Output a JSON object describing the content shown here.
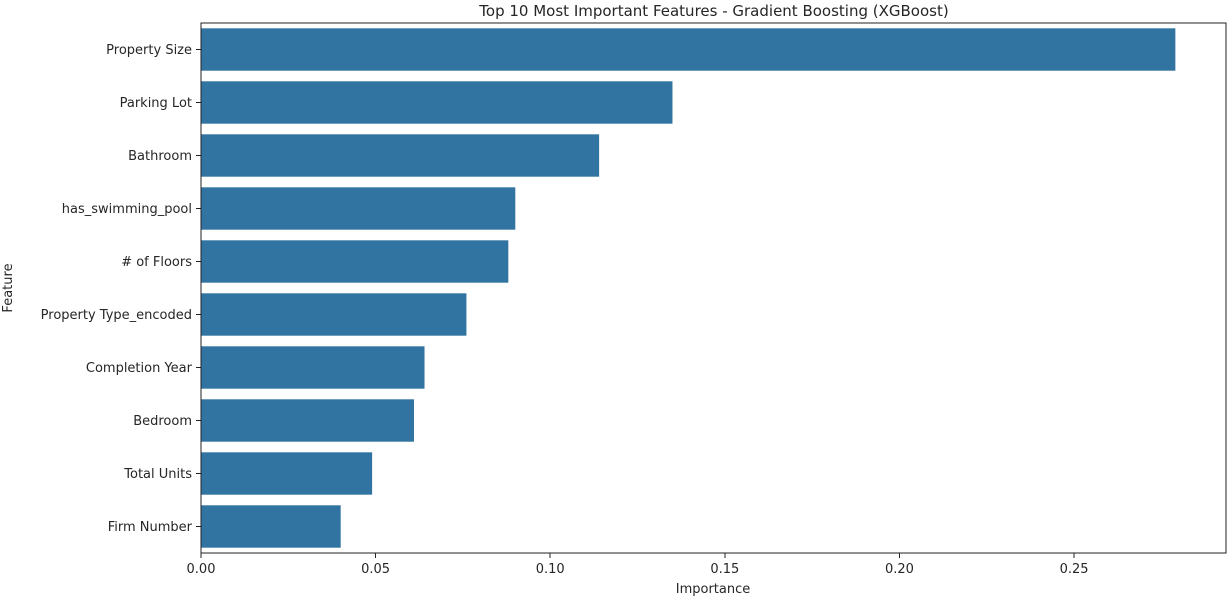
{
  "chart_data": {
    "type": "bar",
    "orientation": "horizontal",
    "title": "Top 10 Most Important Features - Gradient Boosting (XGBoost)",
    "xlabel": "Importance",
    "ylabel": "Feature",
    "xlim": [
      0,
      0.2935
    ],
    "xticks": [
      0.0,
      0.05,
      0.1,
      0.15,
      0.2,
      0.25
    ],
    "xtick_labels": [
      "0.00",
      "0.05",
      "0.10",
      "0.15",
      "0.20",
      "0.25"
    ],
    "grid": false,
    "bar_color": "#3274a1",
    "categories": [
      "Property Size",
      "Parking Lot",
      "Bathroom",
      "has_swimming_pool",
      "# of Floors",
      "Property Type_encoded",
      "Completion Year",
      "Bedroom",
      "Total Units",
      "Firm Number"
    ],
    "values": [
      0.279,
      0.135,
      0.114,
      0.09,
      0.088,
      0.076,
      0.064,
      0.061,
      0.049,
      0.04
    ]
  }
}
